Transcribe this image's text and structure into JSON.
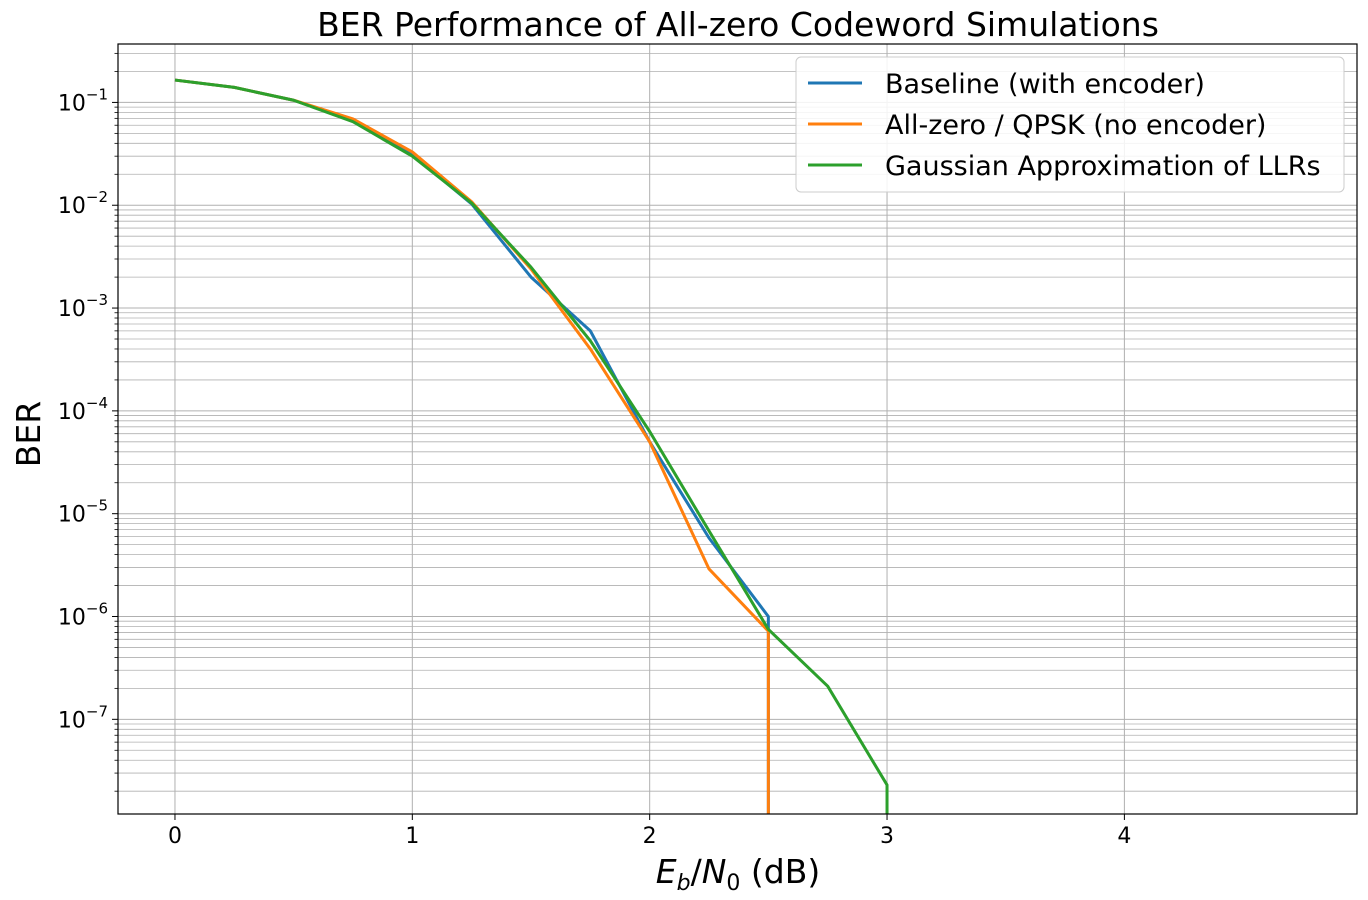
{
  "chart_data": {
    "type": "line",
    "title": "BER Performance of All-zero Codeword Simulations",
    "xlabel": {
      "E": "E",
      "b": "b",
      "slash": "/",
      "N": "N",
      "zero": "0",
      "unit": " (dB)"
    },
    "ylabel": "BER",
    "yscale": "log",
    "xlim": [
      -0.24,
      4.98
    ],
    "ylim": [
      1.2e-08,
      0.37
    ],
    "x_ticks": [
      0,
      1,
      2,
      3,
      4
    ],
    "x_tick_labels": [
      "0",
      "1",
      "2",
      "3",
      "4"
    ],
    "y_ticks": [
      1e-07,
      1e-06,
      1e-05,
      0.0001,
      0.001,
      0.01,
      0.1
    ],
    "y_tick_labels": [
      {
        "base": "10",
        "exp": "−7"
      },
      {
        "base": "10",
        "exp": "−6"
      },
      {
        "base": "10",
        "exp": "−5"
      },
      {
        "base": "10",
        "exp": "−4"
      },
      {
        "base": "10",
        "exp": "−3"
      },
      {
        "base": "10",
        "exp": "−2"
      },
      {
        "base": "10",
        "exp": "−1"
      }
    ],
    "grid": true,
    "legend_position": "top-right",
    "series": [
      {
        "name": "Baseline (with encoder)",
        "color": "#1f77b4",
        "x": [
          0,
          0.25,
          0.5,
          0.75,
          1.0,
          1.25,
          1.5,
          1.75,
          2.0,
          2.25,
          2.5,
          2.5
        ],
        "y": [
          0.165,
          0.14,
          0.105,
          0.067,
          0.031,
          0.0103,
          0.002,
          0.0006,
          5e-05,
          5.8e-06,
          1e-06,
          1.2e-08
        ]
      },
      {
        "name": "All-zero / QPSK (no encoder)",
        "color": "#ff7f0e",
        "x": [
          0,
          0.25,
          0.5,
          0.75,
          1.0,
          1.25,
          1.5,
          1.75,
          2.0,
          2.25,
          2.5,
          2.5
        ],
        "y": [
          0.165,
          0.14,
          0.105,
          0.069,
          0.033,
          0.0108,
          0.0024,
          0.0004,
          5e-05,
          2.9e-06,
          7.2e-07,
          1.2e-08
        ]
      },
      {
        "name": "Gaussian Approximation of LLRs",
        "color": "#2ca02c",
        "x": [
          0,
          0.25,
          0.5,
          0.75,
          1.0,
          1.25,
          1.5,
          1.75,
          2.0,
          2.25,
          2.5,
          2.75,
          3.0,
          3.0
        ],
        "y": [
          0.165,
          0.14,
          0.105,
          0.065,
          0.03,
          0.0105,
          0.0025,
          0.00048,
          6.3e-05,
          6.8e-06,
          7.5e-07,
          2.1e-07,
          2.3e-08,
          1.2e-08
        ]
      }
    ]
  }
}
